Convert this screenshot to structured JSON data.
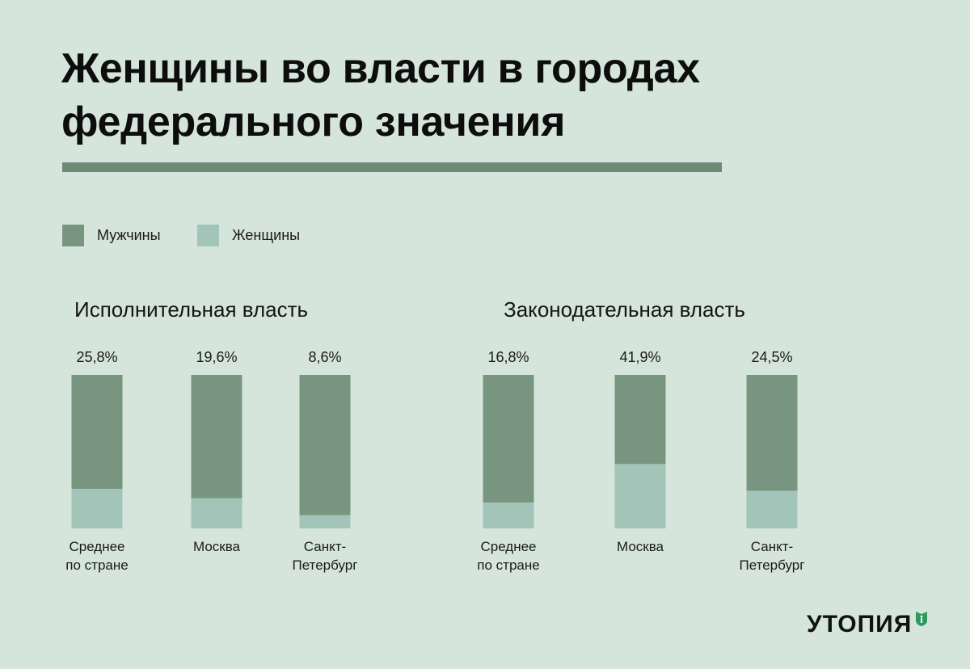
{
  "title_lines": [
    "Женщины во власти в городах",
    "федерального значения"
  ],
  "legend": [
    {
      "label": "Мужчины",
      "color": "#78967f"
    },
    {
      "label": "Женщины",
      "color": "#a3c4b8"
    }
  ],
  "brand": {
    "name": "УТОПИЯ",
    "accent": "#2f9a5c"
  },
  "colors": {
    "background": "#d5e5dc",
    "rule": "#6e8a76",
    "men": "#78967f",
    "women": "#a3c4b8"
  },
  "chart_data": [
    {
      "type": "bar",
      "stacked": true,
      "title": "Исполнительная власть",
      "categories": [
        [
          "Среднее",
          "по стране"
        ],
        [
          "Москва"
        ],
        [
          "Санкт-",
          "Петербург"
        ]
      ],
      "value_labels": [
        "25,8%",
        "19,6%",
        "8,6%"
      ],
      "series": [
        {
          "name": "Женщины",
          "values": [
            25.8,
            19.6,
            8.6
          ]
        },
        {
          "name": "Мужчины",
          "values": [
            74.2,
            80.4,
            91.4
          ]
        }
      ],
      "ylim": [
        0,
        100
      ],
      "unit": "%"
    },
    {
      "type": "bar",
      "stacked": true,
      "title": "Законодательная власть",
      "categories": [
        [
          "Среднее",
          "по стране"
        ],
        [
          "Москва"
        ],
        [
          "Санкт-",
          "Петербург"
        ]
      ],
      "value_labels": [
        "16,8%",
        "41,9%",
        "24,5%"
      ],
      "series": [
        {
          "name": "Женщины",
          "values": [
            16.8,
            41.9,
            24.5
          ]
        },
        {
          "name": "Мужчины",
          "values": [
            83.2,
            58.1,
            75.5
          ]
        }
      ],
      "ylim": [
        0,
        100
      ],
      "unit": "%"
    }
  ]
}
